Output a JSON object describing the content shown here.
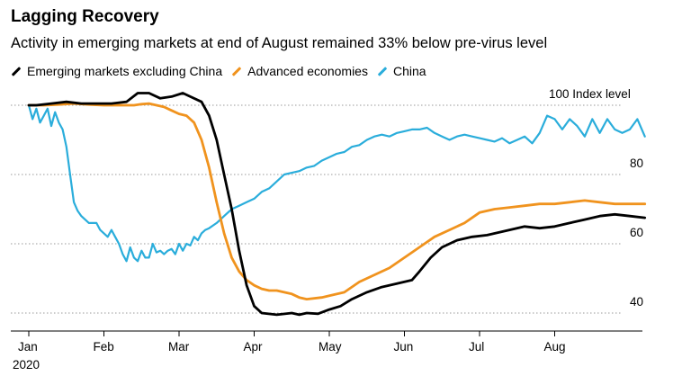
{
  "chart_data": {
    "type": "line",
    "title": "Lagging Recovery",
    "subtitle": "Activity in emerging markets at end of August remained 33% below pre-virus level",
    "ylabel": "Index level",
    "ylim": [
      36,
      106
    ],
    "yticks": [
      40,
      60,
      80,
      100
    ],
    "xlim": [
      0,
      8.2
    ],
    "x_ticks": [
      {
        "pos": 0,
        "label": "Jan",
        "sublabel": "2020"
      },
      {
        "pos": 1,
        "label": "Feb"
      },
      {
        "pos": 2,
        "label": "Mar"
      },
      {
        "pos": 3,
        "label": "Apr"
      },
      {
        "pos": 4,
        "label": "May"
      },
      {
        "pos": 5,
        "label": "Jun"
      },
      {
        "pos": 6,
        "label": "Jul"
      },
      {
        "pos": 7,
        "label": "Aug"
      }
    ],
    "grid": true,
    "legend": "top-left",
    "series": [
      {
        "name": "Emerging markets excluding China",
        "color": "#000000",
        "points": [
          [
            0,
            100
          ],
          [
            0.1,
            100
          ],
          [
            0.3,
            100.5
          ],
          [
            0.5,
            101
          ],
          [
            0.7,
            100.5
          ],
          [
            0.9,
            100.5
          ],
          [
            1.1,
            100.5
          ],
          [
            1.3,
            101
          ],
          [
            1.45,
            103.5
          ],
          [
            1.6,
            103.5
          ],
          [
            1.75,
            102
          ],
          [
            1.9,
            102.5
          ],
          [
            2.05,
            103.5
          ],
          [
            2.15,
            102.5
          ],
          [
            2.3,
            101
          ],
          [
            2.4,
            97
          ],
          [
            2.5,
            90
          ],
          [
            2.6,
            80
          ],
          [
            2.7,
            70
          ],
          [
            2.8,
            58
          ],
          [
            2.9,
            48
          ],
          [
            3.0,
            42
          ],
          [
            3.1,
            40
          ],
          [
            3.3,
            39.5
          ],
          [
            3.5,
            40
          ],
          [
            3.6,
            39.5
          ],
          [
            3.7,
            40
          ],
          [
            3.85,
            39.8
          ],
          [
            4.0,
            41
          ],
          [
            4.15,
            42
          ],
          [
            4.3,
            44
          ],
          [
            4.5,
            46
          ],
          [
            4.7,
            47.5
          ],
          [
            4.9,
            48.5
          ],
          [
            5.1,
            49.5
          ],
          [
            5.2,
            52
          ],
          [
            5.35,
            56
          ],
          [
            5.5,
            59
          ],
          [
            5.7,
            61
          ],
          [
            5.9,
            62
          ],
          [
            6.1,
            62.5
          ],
          [
            6.4,
            64
          ],
          [
            6.6,
            65
          ],
          [
            6.8,
            64.5
          ],
          [
            7.0,
            65
          ],
          [
            7.2,
            66
          ],
          [
            7.4,
            67
          ],
          [
            7.6,
            68
          ],
          [
            7.8,
            68.5
          ],
          [
            8.0,
            68
          ],
          [
            8.2,
            67.5
          ]
        ]
      },
      {
        "name": "Advanced economies",
        "color": "#f0931e",
        "points": [
          [
            0,
            100
          ],
          [
            0.2,
            100
          ],
          [
            0.4,
            100.2
          ],
          [
            0.6,
            100.5
          ],
          [
            0.8,
            100.2
          ],
          [
            1.0,
            100
          ],
          [
            1.2,
            100
          ],
          [
            1.4,
            100
          ],
          [
            1.5,
            100.3
          ],
          [
            1.6,
            100.5
          ],
          [
            1.8,
            99.5
          ],
          [
            1.9,
            98.5
          ],
          [
            2.0,
            97.5
          ],
          [
            2.1,
            97
          ],
          [
            2.2,
            95
          ],
          [
            2.3,
            90
          ],
          [
            2.4,
            82
          ],
          [
            2.5,
            72
          ],
          [
            2.6,
            63
          ],
          [
            2.7,
            56
          ],
          [
            2.8,
            52
          ],
          [
            2.9,
            49.5
          ],
          [
            3.0,
            48
          ],
          [
            3.1,
            47
          ],
          [
            3.2,
            46.5
          ],
          [
            3.3,
            46.5
          ],
          [
            3.4,
            46
          ],
          [
            3.5,
            45.5
          ],
          [
            3.6,
            44.5
          ],
          [
            3.7,
            44
          ],
          [
            3.9,
            44.5
          ],
          [
            4.0,
            45
          ],
          [
            4.2,
            46
          ],
          [
            4.4,
            49
          ],
          [
            4.6,
            51
          ],
          [
            4.8,
            53
          ],
          [
            5.0,
            56
          ],
          [
            5.2,
            59
          ],
          [
            5.4,
            62
          ],
          [
            5.6,
            64
          ],
          [
            5.8,
            66
          ],
          [
            6.0,
            69
          ],
          [
            6.2,
            70
          ],
          [
            6.4,
            70.5
          ],
          [
            6.6,
            71
          ],
          [
            6.8,
            71.5
          ],
          [
            7.0,
            71.5
          ],
          [
            7.2,
            72
          ],
          [
            7.4,
            72.5
          ],
          [
            7.6,
            72
          ],
          [
            7.8,
            71.5
          ],
          [
            8.0,
            71.5
          ],
          [
            8.2,
            71.5
          ]
        ]
      },
      {
        "name": "China",
        "color": "#2aaddb",
        "points": [
          [
            0,
            100
          ],
          [
            0.05,
            96
          ],
          [
            0.1,
            99
          ],
          [
            0.15,
            95
          ],
          [
            0.2,
            97
          ],
          [
            0.25,
            99
          ],
          [
            0.3,
            94
          ],
          [
            0.35,
            98
          ],
          [
            0.4,
            95
          ],
          [
            0.45,
            93
          ],
          [
            0.5,
            88
          ],
          [
            0.55,
            80
          ],
          [
            0.6,
            72
          ],
          [
            0.65,
            69.5
          ],
          [
            0.7,
            68
          ],
          [
            0.75,
            67
          ],
          [
            0.8,
            66
          ],
          [
            0.85,
            66
          ],
          [
            0.9,
            66
          ],
          [
            0.95,
            64
          ],
          [
            1.0,
            63
          ],
          [
            1.05,
            62
          ],
          [
            1.1,
            64
          ],
          [
            1.15,
            62
          ],
          [
            1.2,
            60
          ],
          [
            1.25,
            57
          ],
          [
            1.3,
            55
          ],
          [
            1.35,
            59
          ],
          [
            1.4,
            56
          ],
          [
            1.45,
            55
          ],
          [
            1.5,
            58
          ],
          [
            1.55,
            56
          ],
          [
            1.6,
            56
          ],
          [
            1.65,
            60
          ],
          [
            1.7,
            57.5
          ],
          [
            1.75,
            58
          ],
          [
            1.8,
            57
          ],
          [
            1.85,
            58
          ],
          [
            1.9,
            58.5
          ],
          [
            1.95,
            57
          ],
          [
            2.0,
            60
          ],
          [
            2.05,
            58
          ],
          [
            2.1,
            60
          ],
          [
            2.15,
            59.5
          ],
          [
            2.2,
            62
          ],
          [
            2.25,
            61
          ],
          [
            2.3,
            63
          ],
          [
            2.35,
            64
          ],
          [
            2.4,
            64.5
          ],
          [
            2.5,
            66
          ],
          [
            2.6,
            68
          ],
          [
            2.7,
            70
          ],
          [
            2.8,
            71
          ],
          [
            2.9,
            72
          ],
          [
            3.0,
            73
          ],
          [
            3.1,
            75
          ],
          [
            3.2,
            76
          ],
          [
            3.3,
            78
          ],
          [
            3.4,
            80
          ],
          [
            3.5,
            80.5
          ],
          [
            3.6,
            81
          ],
          [
            3.7,
            82
          ],
          [
            3.8,
            82.5
          ],
          [
            3.9,
            84
          ],
          [
            4.0,
            85
          ],
          [
            4.1,
            86
          ],
          [
            4.2,
            86.5
          ],
          [
            4.3,
            88
          ],
          [
            4.4,
            88.5
          ],
          [
            4.5,
            90
          ],
          [
            4.6,
            91
          ],
          [
            4.7,
            91.5
          ],
          [
            4.8,
            91
          ],
          [
            4.9,
            92
          ],
          [
            5.0,
            92.5
          ],
          [
            5.1,
            93
          ],
          [
            5.2,
            93
          ],
          [
            5.3,
            93.5
          ],
          [
            5.4,
            92
          ],
          [
            5.5,
            91
          ],
          [
            5.6,
            90
          ],
          [
            5.7,
            91
          ],
          [
            5.8,
            91.5
          ],
          [
            5.9,
            91
          ],
          [
            6.0,
            90.5
          ],
          [
            6.1,
            90
          ],
          [
            6.2,
            89.5
          ],
          [
            6.3,
            90.5
          ],
          [
            6.4,
            89
          ],
          [
            6.5,
            90
          ],
          [
            6.6,
            91
          ],
          [
            6.7,
            89
          ],
          [
            6.8,
            92
          ],
          [
            6.9,
            97
          ],
          [
            7.0,
            96
          ],
          [
            7.1,
            93
          ],
          [
            7.2,
            96
          ],
          [
            7.3,
            94
          ],
          [
            7.4,
            91
          ],
          [
            7.5,
            96
          ],
          [
            7.6,
            92
          ],
          [
            7.7,
            96
          ],
          [
            7.8,
            93
          ],
          [
            7.9,
            92
          ],
          [
            8.0,
            93
          ],
          [
            8.1,
            96
          ],
          [
            8.2,
            91
          ]
        ]
      }
    ]
  }
}
